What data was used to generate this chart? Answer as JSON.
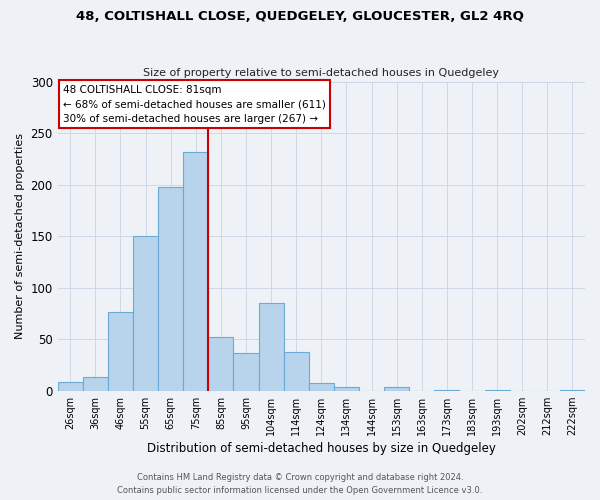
{
  "title": "48, COLTISHALL CLOSE, QUEDGELEY, GLOUCESTER, GL2 4RQ",
  "subtitle": "Size of property relative to semi-detached houses in Quedgeley",
  "xlabel": "Distribution of semi-detached houses by size in Quedgeley",
  "ylabel": "Number of semi-detached properties",
  "bar_labels": [
    "26sqm",
    "36sqm",
    "46sqm",
    "55sqm",
    "65sqm",
    "75sqm",
    "85sqm",
    "95sqm",
    "104sqm",
    "114sqm",
    "124sqm",
    "134sqm",
    "144sqm",
    "153sqm",
    "163sqm",
    "173sqm",
    "183sqm",
    "193sqm",
    "202sqm",
    "212sqm",
    "222sqm"
  ],
  "bar_values": [
    8,
    13,
    76,
    150,
    198,
    232,
    52,
    37,
    85,
    38,
    7,
    4,
    0,
    4,
    0,
    1,
    0,
    1,
    0,
    0,
    1
  ],
  "bar_color": "#b8d4ec",
  "bar_edge_color": "#6aaad4",
  "vline_x": 6,
  "vline_color": "#cc0000",
  "annotation_title": "48 COLTISHALL CLOSE: 81sqm",
  "annotation_line1": "← 68% of semi-detached houses are smaller (611)",
  "annotation_line2": "30% of semi-detached houses are larger (267) →",
  "annotation_box_color": "#cc0000",
  "ylim": [
    0,
    300
  ],
  "yticks": [
    0,
    50,
    100,
    150,
    200,
    250,
    300
  ],
  "footer1": "Contains HM Land Registry data © Crown copyright and database right 2024.",
  "footer2": "Contains public sector information licensed under the Open Government Licence v3.0.",
  "bg_color": "#eef2f7"
}
